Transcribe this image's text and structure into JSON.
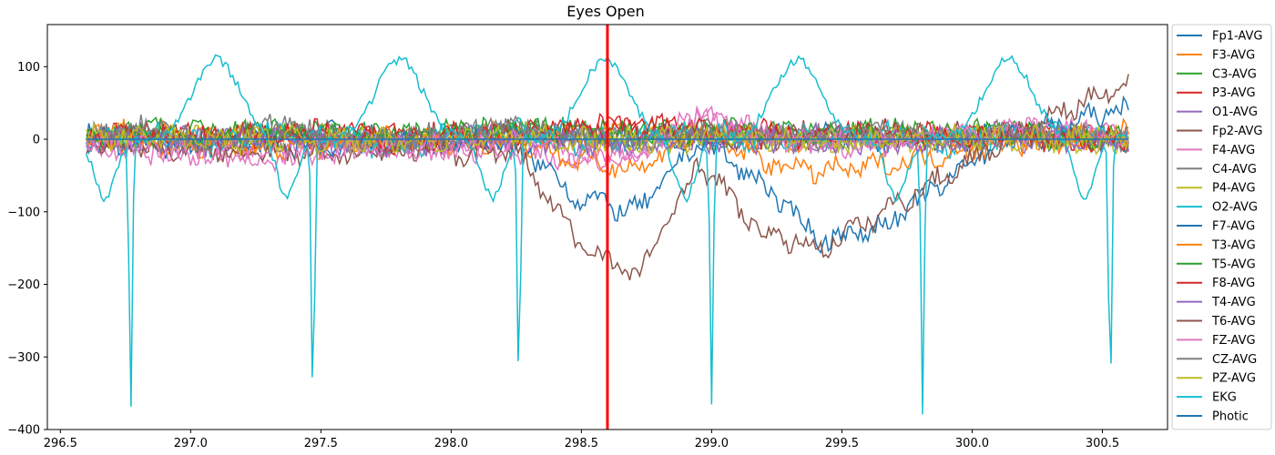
{
  "chart_data": {
    "type": "line",
    "title": "Eyes Open",
    "xlabel": "",
    "ylabel": "",
    "xlim": [
      296.45,
      300.75
    ],
    "ylim": [
      -400,
      158
    ],
    "x_ticks": [
      296.5,
      297.0,
      297.5,
      298.0,
      298.5,
      299.0,
      299.5,
      300.0,
      300.5
    ],
    "x_tick_labels": [
      "296.5",
      "297.0",
      "297.5",
      "298.0",
      "298.5",
      "299.0",
      "299.5",
      "300.0",
      "300.5"
    ],
    "y_ticks": [
      100,
      0,
      -100,
      -200,
      -300,
      -400
    ],
    "y_tick_labels": [
      "100",
      "0",
      "−100",
      "−200",
      "−300",
      "−400"
    ],
    "grid": false,
    "legend_position": "outside-right",
    "vline": {
      "x": 298.6,
      "color": "#ff0000"
    },
    "x_range": [
      296.6,
      300.6
    ],
    "series": [
      {
        "name": "Fp1-AVG",
        "color": "#1f77b4",
        "values": [
          3,
          6,
          -2,
          4,
          8,
          0,
          -5,
          3,
          5,
          -1,
          4,
          2,
          6,
          -3,
          1,
          5,
          0,
          -2
        ]
      },
      {
        "name": "F3-AVG",
        "color": "#ff7f0e",
        "values": [
          5,
          9,
          2,
          7,
          4,
          -6,
          1,
          8,
          3,
          6,
          2,
          5,
          -3,
          4,
          7,
          1,
          3,
          0
        ]
      },
      {
        "name": "C3-AVG",
        "color": "#2ca02c",
        "values": [
          8,
          14,
          6,
          12,
          10,
          4,
          9,
          15,
          11,
          7,
          13,
          8,
          5,
          10,
          6,
          9,
          4,
          2
        ]
      },
      {
        "name": "P3-AVG",
        "color": "#d62728",
        "values": [
          4,
          7,
          2,
          6,
          9,
          3,
          5,
          10,
          14,
          20,
          12,
          8,
          6,
          9,
          4,
          7,
          3,
          1
        ]
      },
      {
        "name": "O1-AVG",
        "color": "#9467bd",
        "values": [
          -3,
          2,
          -5,
          1,
          -2,
          -6,
          0,
          3,
          -4,
          -1,
          2,
          -3,
          1,
          -2,
          0,
          2,
          -1,
          -2
        ]
      },
      {
        "name": "Fp2-AVG",
        "color": "#8c564b",
        "values": [
          0,
          5,
          -3,
          6,
          2,
          -4,
          4,
          8,
          -2,
          5,
          3,
          -1,
          6,
          2,
          4,
          7,
          1,
          -2
        ]
      },
      {
        "name": "F4-AVG",
        "color": "#e377c2",
        "values": [
          -8,
          -15,
          -20,
          -25,
          -10,
          -18,
          -12,
          -16,
          -30,
          -22,
          30,
          10,
          -10,
          -5,
          3,
          12,
          8,
          5
        ]
      },
      {
        "name": "C4-AVG",
        "color": "#7f7f7f",
        "values": [
          2,
          10,
          -6,
          15,
          4,
          -2,
          8,
          12,
          6,
          -4,
          10,
          5,
          2,
          8,
          -3,
          6,
          4,
          1
        ]
      },
      {
        "name": "P4-AVG",
        "color": "#bcbd22",
        "values": [
          2,
          4,
          -1,
          3,
          0,
          -3,
          2,
          5,
          1,
          -2,
          3,
          1,
          -1,
          2,
          0,
          3,
          1,
          -1
        ]
      },
      {
        "name": "O2-AVG",
        "color": "#17becf",
        "values": [
          -5,
          8,
          -10,
          12,
          3,
          -14,
          6,
          10,
          -6,
          4,
          9,
          -3,
          7,
          12,
          -8,
          5,
          14,
          -4
        ]
      },
      {
        "name": "F7-AVG",
        "color": "#1f77b4",
        "values": [
          0,
          -10,
          -5,
          -8,
          -12,
          5,
          -5,
          0,
          -80,
          -100,
          0,
          -60,
          -140,
          -120,
          -60,
          10,
          20,
          45
        ]
      },
      {
        "name": "T3-AVG",
        "color": "#ff7f0e",
        "values": [
          2,
          -5,
          -8,
          -12,
          -10,
          0,
          -3,
          0,
          -30,
          -40,
          10,
          -30,
          -45,
          -35,
          -20,
          -5,
          0,
          8
        ]
      },
      {
        "name": "T5-AVG",
        "color": "#2ca02c",
        "values": [
          3,
          8,
          5,
          10,
          6,
          2,
          7,
          12,
          9,
          5,
          8,
          4,
          6,
          9,
          5,
          7,
          3,
          2
        ]
      },
      {
        "name": "F8-AVG",
        "color": "#d62728",
        "values": [
          3,
          6,
          1,
          9,
          5,
          -2,
          4,
          8,
          15,
          20,
          10,
          6,
          3,
          7,
          2,
          5,
          1,
          -1
        ]
      },
      {
        "name": "T4-AVG",
        "color": "#9467bd",
        "values": [
          -4,
          0,
          -6,
          2,
          -3,
          -5,
          -1,
          2,
          -3,
          -6,
          0,
          -2,
          1,
          -3,
          -1,
          2,
          0,
          -1
        ]
      },
      {
        "name": "T6-AVG",
        "color": "#8c564b",
        "values": [
          -5,
          -12,
          -15,
          -20,
          -25,
          -10,
          -20,
          -15,
          -140,
          -190,
          -30,
          -130,
          -150,
          -100,
          -50,
          0,
          40,
          80
        ]
      },
      {
        "name": "FZ-AVG",
        "color": "#e377c2",
        "values": [
          -3,
          -10,
          -18,
          -22,
          -15,
          -8,
          -12,
          -5,
          -20,
          -25,
          40,
          5,
          -5,
          0,
          4,
          15,
          10,
          3
        ]
      },
      {
        "name": "CZ-AVG",
        "color": "#7f7f7f",
        "values": [
          4,
          15,
          -8,
          18,
          6,
          -4,
          10,
          14,
          8,
          -6,
          12,
          6,
          3,
          10,
          -4,
          8,
          5,
          2
        ]
      },
      {
        "name": "PZ-AVG",
        "color": "#bcbd22",
        "values": [
          1,
          3,
          -2,
          2,
          0,
          -4,
          1,
          3,
          -1,
          -3,
          2,
          0,
          -2,
          1,
          -1,
          2,
          0,
          -1
        ]
      },
      {
        "name": "EKG",
        "color": "#17becf",
        "peaks_x": [
          296.77,
          297.47,
          298.26,
          299.0,
          299.81,
          300.53
        ],
        "note_values": [
          -375,
          -375,
          -340,
          -365,
          -372,
          -365
        ]
      },
      {
        "name": "Photic",
        "color": "#1f77b4",
        "values": [
          0,
          0,
          0,
          0,
          0,
          0,
          0,
          0,
          0,
          0,
          0,
          0,
          0,
          0,
          0,
          0,
          0,
          0
        ]
      }
    ]
  }
}
